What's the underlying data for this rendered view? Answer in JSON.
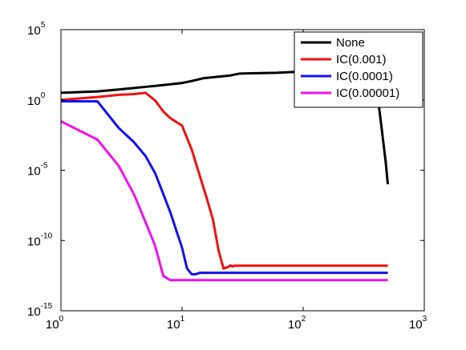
{
  "chart_data": {
    "type": "line",
    "title": "",
    "xlabel": "",
    "ylabel": "",
    "xscale": "log",
    "yscale": "log",
    "xlim": [
      1,
      1000
    ],
    "ylim": [
      1e-15,
      100000.0
    ],
    "grid": false,
    "legend_position": "top-right",
    "x_ticks": [
      {
        "base": "10",
        "exp": "0",
        "value": 1
      },
      {
        "base": "10",
        "exp": "1",
        "value": 10
      },
      {
        "base": "10",
        "exp": "2",
        "value": 100
      },
      {
        "base": "10",
        "exp": "3",
        "value": 1000
      }
    ],
    "y_ticks": [
      {
        "base": "10",
        "exp": "5",
        "value": 100000.0
      },
      {
        "base": "10",
        "exp": "0",
        "value": 1
      },
      {
        "base": "10",
        "exp": "-5",
        "value": 1e-05
      },
      {
        "base": "10",
        "exp": "-10",
        "value": 1e-10
      },
      {
        "base": "10",
        "exp": "-15",
        "value": 1e-15
      }
    ],
    "series": [
      {
        "name": "None",
        "color": "#000000",
        "x": [
          1,
          2,
          3,
          4,
          5,
          6,
          8,
          10,
          12,
          15,
          20,
          25,
          30,
          40,
          50,
          60,
          80,
          100,
          150,
          200,
          250,
          300,
          350,
          400,
          420,
          440,
          460,
          480,
          500
        ],
        "y": [
          3.2,
          4.0,
          5.5,
          7.0,
          8.5,
          10,
          13,
          16,
          22,
          35,
          45,
          55,
          75,
          80,
          82,
          85,
          95,
          105,
          110,
          112,
          108,
          95,
          60,
          10,
          0.5,
          0.02,
          0.0008,
          4e-05,
          1e-06
        ]
      },
      {
        "name": "IC(0.001)",
        "color": "#ee1111",
        "x": [
          1,
          2,
          3,
          4,
          5,
          6,
          7,
          8,
          10,
          12,
          14,
          16,
          18,
          20,
          22,
          24,
          25,
          26,
          27,
          28,
          30,
          40,
          60,
          100,
          200,
          500
        ],
        "y": [
          1.0,
          1.6,
          2.3,
          2.6,
          3.2,
          0.9,
          0.15,
          0.05,
          0.015,
          0.0003,
          4e-06,
          1e-07,
          3e-09,
          2e-11,
          1e-12,
          1.3e-12,
          1.7e-12,
          1.4e-12,
          1.6e-12,
          1.6e-12,
          1.6e-12,
          1.6e-12,
          1.6e-12,
          1.6e-12,
          1.6e-12,
          1.6e-12
        ]
      },
      {
        "name": "IC(0.0001)",
        "color": "#1111ee",
        "x": [
          1,
          2,
          3,
          4,
          5,
          6,
          7,
          8,
          10,
          11,
          12,
          13,
          14,
          15,
          16,
          20,
          30,
          50,
          100,
          200,
          500
        ],
        "y": [
          0.8,
          0.8,
          0.01,
          0.001,
          0.0001,
          6e-06,
          2e-07,
          1e-08,
          3e-11,
          1e-12,
          4e-13,
          4e-13,
          5e-13,
          5e-13,
          5e-13,
          5e-13,
          5e-13,
          5e-13,
          5e-13,
          5e-13,
          5e-13
        ]
      },
      {
        "name": "IC(0.00001)",
        "color": "#ee11ee",
        "x": [
          1,
          2,
          3,
          4,
          5,
          6,
          7,
          8,
          9,
          10,
          20,
          50,
          100,
          200,
          500
        ],
        "y": [
          0.03,
          0.0015,
          2e-05,
          2e-07,
          2e-09,
          4e-11,
          3e-13,
          1.5e-13,
          1.5e-13,
          1.5e-13,
          1.5e-13,
          1.5e-13,
          1.5e-13,
          1.5e-13,
          1.5e-13
        ]
      }
    ]
  }
}
